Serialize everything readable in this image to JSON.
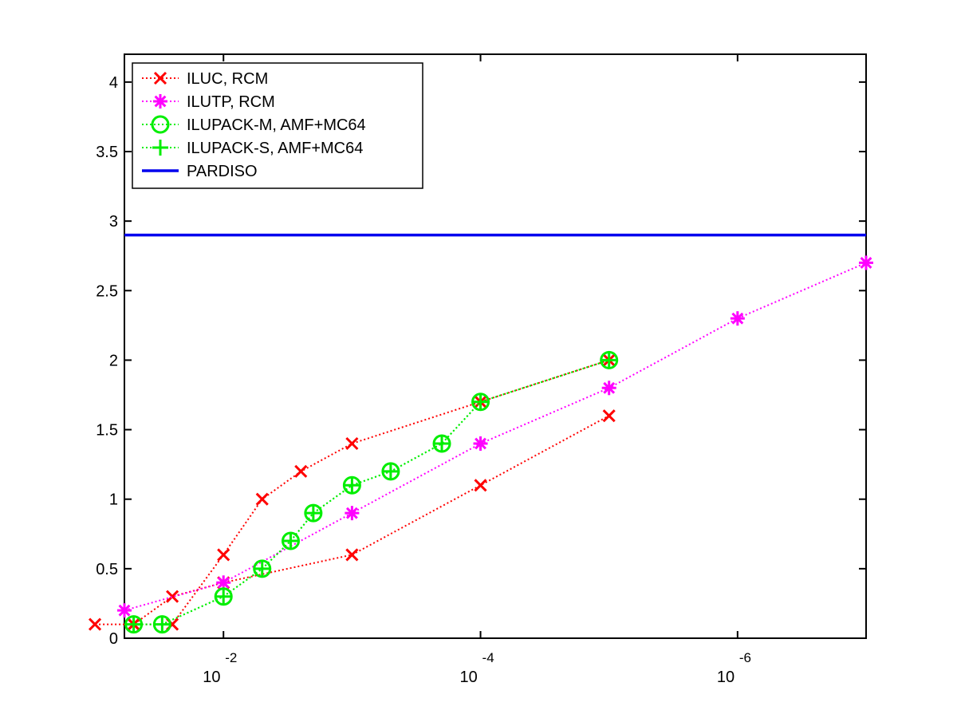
{
  "chart_data": {
    "type": "line",
    "title": "",
    "xlabel": "",
    "ylabel": "",
    "x_scale": "log",
    "x_direction": "decreasing",
    "xlim": [
      0.059,
      1e-07
    ],
    "ylim": [
      0,
      4.2
    ],
    "grid": false,
    "legend_position": "top-left",
    "x_ticks": [
      {
        "value": 0.01,
        "base": "10",
        "exp": "-2"
      },
      {
        "value": 0.0001,
        "base": "10",
        "exp": "-4"
      },
      {
        "value": 1e-06,
        "base": "10",
        "exp": "-6"
      }
    ],
    "y_ticks": [
      {
        "value": 0,
        "label": "0"
      },
      {
        "value": 0.5,
        "label": "0.5"
      },
      {
        "value": 1,
        "label": "1"
      },
      {
        "value": 1.5,
        "label": "1.5"
      },
      {
        "value": 2,
        "label": "2"
      },
      {
        "value": 2.5,
        "label": "2.5"
      },
      {
        "value": 3,
        "label": "3"
      },
      {
        "value": 3.5,
        "label": "3.5"
      },
      {
        "value": 4,
        "label": "4"
      }
    ],
    "series": [
      {
        "name": "ILUC, RCM",
        "color": "#ff0000",
        "line": "dotted",
        "marker": "x",
        "x": [
          0.05,
          0.025,
          0.01,
          0.005,
          0.0025,
          0.001,
          0.0001,
          1e-05
        ],
        "y": [
          0.1,
          0.1,
          0.6,
          1.0,
          1.2,
          1.4,
          1.7,
          2.0
        ]
      },
      {
        "name": "ILUC, RCM",
        "color": "#ff0000",
        "line": "dotted",
        "marker": "x",
        "legend": false,
        "x": [
          0.1,
          0.05,
          0.025,
          0.01,
          0.001,
          0.0001,
          1e-05
        ],
        "y": [
          0.1,
          0.1,
          0.3,
          0.4,
          0.6,
          1.1,
          1.6
        ]
      },
      {
        "name": "ILUTP, RCM",
        "color": "#ff00ff",
        "line": "dotted",
        "marker": "star",
        "x": [
          0.059,
          0.01,
          0.001,
          0.0001,
          1e-05,
          1e-06,
          1e-07
        ],
        "y": [
          0.2,
          0.4,
          0.9,
          1.4,
          1.8,
          2.3,
          2.7
        ]
      },
      {
        "name": "ILUPACK-M, AMF+MC64",
        "color": "#00ee00",
        "line": "dotted",
        "marker": "circle",
        "x": [
          0.05,
          0.03,
          0.01,
          0.005,
          0.003,
          0.002,
          0.001,
          0.0005,
          0.0002,
          0.0001,
          1e-05
        ],
        "y": [
          0.1,
          0.1,
          0.3,
          0.5,
          0.7,
          0.9,
          1.1,
          1.2,
          1.4,
          1.7,
          2.0
        ]
      },
      {
        "name": "ILUPACK-S, AMF+MC64",
        "color": "#00ee00",
        "line": "dotted",
        "marker": "plus",
        "x": [
          0.05,
          0.03,
          0.01,
          0.005,
          0.003,
          0.002,
          0.001,
          0.0005,
          0.0002,
          0.0001,
          1e-05
        ],
        "y": [
          0.1,
          0.1,
          0.3,
          0.5,
          0.7,
          0.9,
          1.1,
          1.2,
          1.4,
          1.7,
          2.0
        ]
      },
      {
        "name": "PARDISO",
        "color": "#0000ee",
        "line": "solid",
        "marker": "none",
        "x": [
          0.059,
          1e-07
        ],
        "y": [
          2.9,
          2.9
        ]
      }
    ]
  }
}
